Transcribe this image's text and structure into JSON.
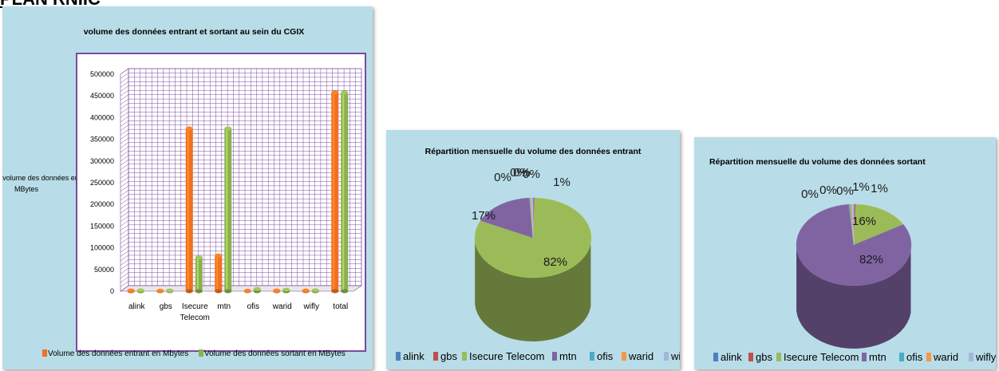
{
  "page": {
    "heading": "PLAN RNIIC"
  },
  "chart_data": [
    {
      "type": "bar",
      "title": "volume des données entrant et sortant au sein du CGIX",
      "ylabel": "volume des données en MBytes",
      "xlabel": "",
      "categories": [
        "alink",
        "gbs",
        "Isecure Telecom",
        "mtn",
        "ofis",
        "warid",
        "wifly",
        "total"
      ],
      "yticks": [
        "0",
        "50000",
        "100000",
        "150000",
        "200000",
        "250000",
        "300000",
        "350000",
        "400000",
        "450000",
        "500000"
      ],
      "ylim": [
        0,
        500000
      ],
      "grid": true,
      "legend_position": "bottom",
      "series": [
        {
          "name": "Volume des données entrant en Mbytes",
          "color": "#f07020",
          "values": [
            1500,
            1000,
            375000,
            82000,
            1000,
            1500,
            1500,
            458000
          ]
        },
        {
          "name": "Volume des données sortant en MBytes",
          "color": "#8cb050",
          "values": [
            2000,
            1500,
            78000,
            375000,
            5000,
            3500,
            2000,
            458000
          ]
        }
      ]
    },
    {
      "type": "pie",
      "title": "Répartition mensuelle du volume des données entrant",
      "legend_position": "bottom",
      "labels": [
        "alink",
        "gbs",
        "Isecure Telecom",
        "mtn",
        "ofis",
        "warid",
        "wifly"
      ],
      "values": [
        0.3,
        0.2,
        82,
        17,
        0.2,
        0.3,
        0.5
      ],
      "data_labels": [
        "0%",
        "0%",
        "82%",
        "17%",
        "0%",
        "0%",
        "1%"
      ],
      "colors": [
        "#4f81bd",
        "#c0504d",
        "#9bbb59",
        "#8064a2",
        "#4bacc6",
        "#f79646",
        "#a5b5d8"
      ]
    },
    {
      "type": "pie",
      "title": "Répartition mensuelle du volume des données sortant",
      "legend_position": "bottom",
      "labels": [
        "alink",
        "gbs",
        "Isecure Telecom",
        "mtn",
        "ofis",
        "warid",
        "wifly"
      ],
      "values": [
        0.3,
        0.3,
        16,
        82,
        0.4,
        0.5,
        0.5
      ],
      "data_labels": [
        "0%",
        "0%",
        "16%",
        "82%",
        "0%",
        "1%",
        "1%"
      ],
      "colors": [
        "#4f81bd",
        "#c0504d",
        "#9bbb59",
        "#8064a2",
        "#4bacc6",
        "#f79646",
        "#a5b5d8"
      ]
    }
  ]
}
